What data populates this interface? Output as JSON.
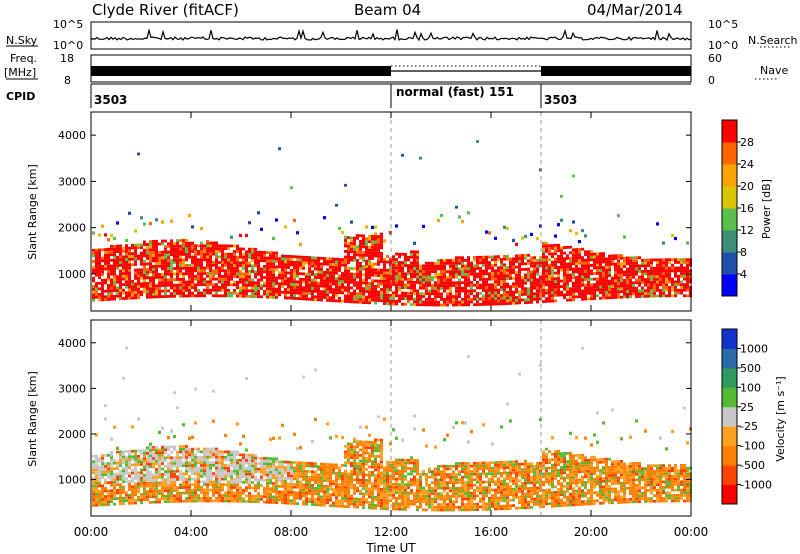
{
  "header": {
    "station": "Clyde River (fitACF)",
    "beam": "Beam 04",
    "date": "04/Mar/2014"
  },
  "noise_panel": {
    "left_label": "N.Sky",
    "left_ticks": [
      "10^5",
      "10^0"
    ],
    "right_ticks": [
      "10^5",
      "10^0"
    ],
    "right_label": "N.Search"
  },
  "freq_panel": {
    "left_label_line1": "Freq.",
    "left_label_line2": "[MHz]",
    "left_ticks": [
      "18",
      "8"
    ],
    "right_ticks": [
      "60",
      "0"
    ],
    "right_label": "Nave"
  },
  "cpid_panel": {
    "label": "CPID",
    "segments": [
      {
        "start_hour": 0,
        "text": "3503"
      },
      {
        "start_hour": 12,
        "text": "normal (fast)  151"
      },
      {
        "start_hour": 18,
        "text": "3503"
      }
    ]
  },
  "colors": {
    "power_scale": [
      "#0000ff",
      "#1f4fa8",
      "#3d8e74",
      "#5cbf4d",
      "#d9c400",
      "#ffa300",
      "#ff6600",
      "#ff0000"
    ],
    "velocity_scale": [
      "#ff0000",
      "#ff4400",
      "#ff7f00",
      "#ffa020",
      "#c8c8c8",
      "#55bb33",
      "#2f9a5f",
      "#2c6aa8",
      "#1533cc"
    ]
  },
  "chart_data": [
    {
      "type": "heatmap",
      "title": "Power",
      "xlabel": "Time UT",
      "ylabel": "Slant Range [km]",
      "xlim_hours": [
        0,
        24
      ],
      "x_ticks": [
        "00:00",
        "04:00",
        "08:00",
        "12:00",
        "16:00",
        "20:00",
        "00:00"
      ],
      "ylim": [
        200,
        4500
      ],
      "y_ticks": [
        "1000",
        "2000",
        "3000",
        "4000"
      ],
      "colorbar_label": "Power [dB]",
      "colorbar_ticks": [
        "28",
        "24",
        "20",
        "16",
        "12",
        "8",
        "4"
      ],
      "colorbar_range": [
        0,
        32
      ]
    },
    {
      "type": "heatmap",
      "title": "Velocity",
      "xlabel": "Time UT",
      "ylabel": "Slant Range [km]",
      "xlim_hours": [
        0,
        24
      ],
      "x_ticks": [
        "00:00",
        "04:00",
        "08:00",
        "12:00",
        "16:00",
        "20:00",
        "00:00"
      ],
      "ylim": [
        200,
        4500
      ],
      "y_ticks": [
        "1000",
        "2000",
        "3000",
        "4000"
      ],
      "colorbar_label": "Velocity [m s⁻¹]",
      "colorbar_ticks": [
        "1000",
        "500",
        "100",
        "25",
        "-25",
        "-100",
        "-500",
        "-1000"
      ]
    }
  ]
}
